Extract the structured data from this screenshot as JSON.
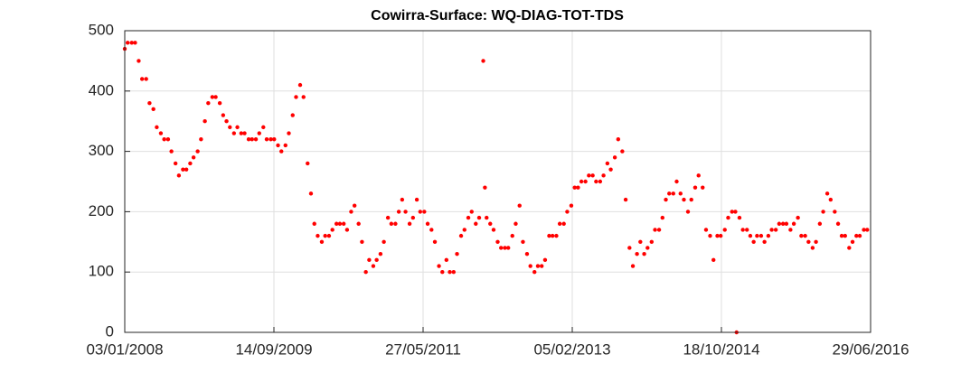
{
  "chart_data": {
    "type": "scatter",
    "title": "Cowirra-Surface: WQ-DIAG-TOT-TDS",
    "color": "#ff0000",
    "grid": true,
    "xlim": [
      "2008-01-03",
      "2016-06-29"
    ],
    "xticks": [
      {
        "value": "2008-01-03",
        "label": "03/01/2008"
      },
      {
        "value": "2009-09-14",
        "label": "14/09/2009"
      },
      {
        "value": "2011-05-27",
        "label": "27/05/2011"
      },
      {
        "value": "2013-02-05",
        "label": "05/02/2013"
      },
      {
        "value": "2014-10-18",
        "label": "18/10/2014"
      },
      {
        "value": "2016-06-29",
        "label": "29/06/2016"
      }
    ],
    "ylim": [
      0,
      500
    ],
    "yticks": [
      0,
      100,
      200,
      300,
      400,
      500
    ],
    "x": [
      "2008-01-03",
      "2008-01-15",
      "2008-02-01",
      "2008-02-15",
      "2008-03-01",
      "2008-03-15",
      "2008-04-01",
      "2008-04-15",
      "2008-05-01",
      "2008-05-15",
      "2008-06-01",
      "2008-06-15",
      "2008-07-01",
      "2008-07-15",
      "2008-08-01",
      "2008-08-15",
      "2008-09-01",
      "2008-09-15",
      "2008-10-01",
      "2008-10-15",
      "2008-11-01",
      "2008-11-15",
      "2008-12-01",
      "2008-12-15",
      "2009-01-01",
      "2009-01-15",
      "2009-02-01",
      "2009-02-15",
      "2009-03-01",
      "2009-03-15",
      "2009-04-01",
      "2009-04-15",
      "2009-05-01",
      "2009-05-15",
      "2009-06-01",
      "2009-06-15",
      "2009-07-01",
      "2009-07-15",
      "2009-08-01",
      "2009-08-15",
      "2009-09-01",
      "2009-09-15",
      "2009-10-01",
      "2009-10-15",
      "2009-11-01",
      "2009-11-15",
      "2009-12-01",
      "2009-12-15",
      "2010-01-01",
      "2010-01-15",
      "2010-02-01",
      "2010-02-15",
      "2010-03-01",
      "2010-03-15",
      "2010-04-01",
      "2010-04-15",
      "2010-05-01",
      "2010-05-15",
      "2010-06-01",
      "2010-06-15",
      "2010-07-01",
      "2010-07-15",
      "2010-08-01",
      "2010-08-15",
      "2010-09-01",
      "2010-09-15",
      "2010-10-01",
      "2010-10-15",
      "2010-11-01",
      "2010-11-15",
      "2010-12-01",
      "2010-12-15",
      "2011-01-01",
      "2011-01-15",
      "2011-02-01",
      "2011-02-15",
      "2011-03-01",
      "2011-03-15",
      "2011-04-01",
      "2011-04-15",
      "2011-05-01",
      "2011-05-15",
      "2011-06-01",
      "2011-06-15",
      "2011-07-01",
      "2011-07-15",
      "2011-08-01",
      "2011-08-15",
      "2011-09-01",
      "2011-09-15",
      "2011-10-01",
      "2011-10-15",
      "2011-11-01",
      "2011-11-15",
      "2011-12-01",
      "2011-12-15",
      "2012-01-01",
      "2012-01-15",
      "2012-02-01",
      "2012-02-08",
      "2012-02-15",
      "2012-03-01",
      "2012-03-15",
      "2012-04-01",
      "2012-04-15",
      "2012-05-01",
      "2012-05-15",
      "2012-06-01",
      "2012-06-15",
      "2012-07-01",
      "2012-07-15",
      "2012-08-01",
      "2012-08-15",
      "2012-09-01",
      "2012-09-15",
      "2012-10-01",
      "2012-10-15",
      "2012-11-01",
      "2012-11-15",
      "2012-12-01",
      "2012-12-15",
      "2013-01-01",
      "2013-01-15",
      "2013-02-01",
      "2013-02-15",
      "2013-03-01",
      "2013-03-15",
      "2013-04-01",
      "2013-04-15",
      "2013-05-01",
      "2013-05-15",
      "2013-06-01",
      "2013-06-15",
      "2013-07-01",
      "2013-07-15",
      "2013-08-01",
      "2013-08-15",
      "2013-09-01",
      "2013-09-15",
      "2013-10-01",
      "2013-10-15",
      "2013-11-01",
      "2013-11-15",
      "2013-12-01",
      "2013-12-15",
      "2014-01-01",
      "2014-01-15",
      "2014-02-01",
      "2014-02-15",
      "2014-03-01",
      "2014-03-15",
      "2014-04-01",
      "2014-04-15",
      "2014-05-01",
      "2014-05-15",
      "2014-06-01",
      "2014-06-15",
      "2014-07-01",
      "2014-07-15",
      "2014-08-01",
      "2014-08-15",
      "2014-09-01",
      "2014-09-15",
      "2014-10-01",
      "2014-10-15",
      "2014-11-01",
      "2014-11-15",
      "2014-12-01",
      "2014-12-15",
      "2014-12-20",
      "2015-01-01",
      "2015-01-15",
      "2015-02-01",
      "2015-02-15",
      "2015-03-01",
      "2015-03-15",
      "2015-04-01",
      "2015-04-15",
      "2015-05-01",
      "2015-05-15",
      "2015-06-01",
      "2015-06-15",
      "2015-07-01",
      "2015-07-15",
      "2015-08-01",
      "2015-08-15",
      "2015-09-01",
      "2015-09-15",
      "2015-10-01",
      "2015-10-15",
      "2015-11-01",
      "2015-11-15",
      "2015-12-01",
      "2015-12-15",
      "2016-01-01",
      "2016-01-15",
      "2016-02-01",
      "2016-02-15",
      "2016-03-01",
      "2016-03-15",
      "2016-04-01",
      "2016-04-15",
      "2016-05-01",
      "2016-05-15",
      "2016-06-01",
      "2016-06-15"
    ],
    "values": [
      470,
      480,
      480,
      480,
      450,
      420,
      420,
      380,
      370,
      340,
      330,
      320,
      320,
      300,
      280,
      260,
      270,
      270,
      280,
      290,
      300,
      320,
      350,
      380,
      390,
      390,
      380,
      360,
      350,
      340,
      330,
      340,
      330,
      330,
      320,
      320,
      320,
      330,
      340,
      320,
      320,
      320,
      310,
      300,
      310,
      330,
      360,
      390,
      410,
      390,
      280,
      230,
      180,
      160,
      150,
      160,
      160,
      170,
      180,
      180,
      180,
      170,
      200,
      210,
      180,
      150,
      100,
      120,
      110,
      120,
      130,
      150,
      190,
      180,
      180,
      200,
      220,
      200,
      180,
      190,
      220,
      200,
      200,
      180,
      170,
      150,
      110,
      100,
      120,
      100,
      100,
      130,
      160,
      170,
      190,
      200,
      180,
      190,
      450,
      240,
      190,
      180,
      170,
      150,
      140,
      140,
      140,
      160,
      180,
      210,
      150,
      130,
      110,
      100,
      110,
      110,
      120,
      160,
      160,
      160,
      180,
      180,
      200,
      210,
      240,
      240,
      250,
      250,
      260,
      260,
      250,
      250,
      260,
      280,
      270,
      290,
      320,
      300,
      220,
      140,
      110,
      130,
      150,
      130,
      140,
      150,
      170,
      170,
      190,
      220,
      230,
      230,
      250,
      230,
      220,
      200,
      220,
      240,
      260,
      240,
      170,
      160,
      120,
      160,
      160,
      170,
      190,
      200,
      200,
      0,
      190,
      170,
      170,
      160,
      150,
      160,
      160,
      150,
      160,
      170,
      170,
      180,
      180,
      180,
      170,
      180,
      190,
      160,
      160,
      150,
      140,
      150,
      180,
      200,
      230,
      220,
      200,
      180,
      160,
      160,
      140,
      150,
      160,
      160,
      170,
      170
    ]
  }
}
